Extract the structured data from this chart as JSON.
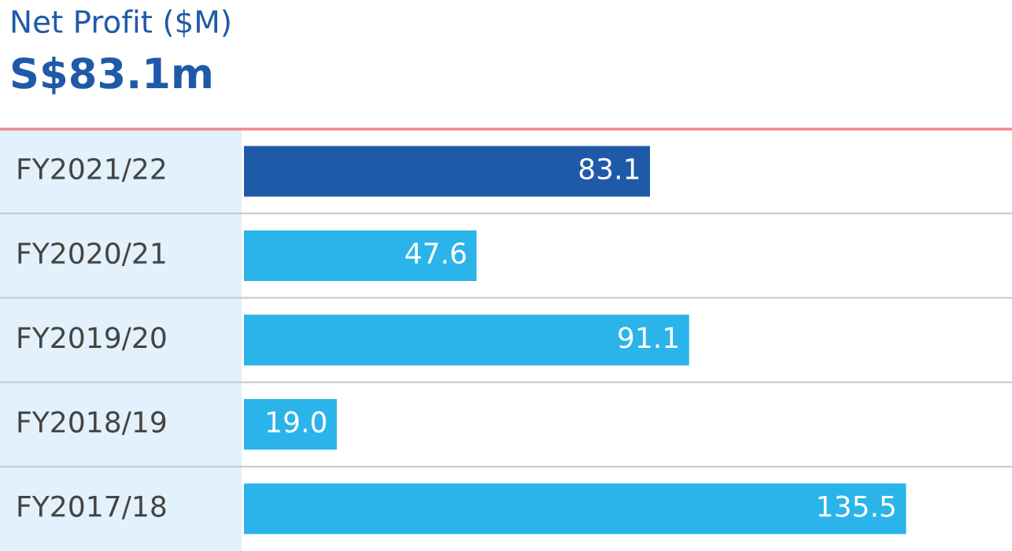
{
  "chart_data": {
    "type": "bar",
    "orientation": "horizontal",
    "title": "Net Profit ($M)",
    "subtitle": "S$83.1m",
    "categories": [
      "FY2021/22",
      "FY2020/21",
      "FY2019/20",
      "FY2018/19",
      "FY2017/18"
    ],
    "values": [
      83.1,
      47.6,
      91.1,
      19.0,
      135.5
    ],
    "colors": [
      "#1f5aa8",
      "#2ab4ea",
      "#2ab4ea",
      "#2ab4ea",
      "#2ab4ea"
    ],
    "value_labels": [
      "83.1",
      "47.6",
      "91.1",
      "19.0",
      "135.5"
    ],
    "legend": false
  }
}
